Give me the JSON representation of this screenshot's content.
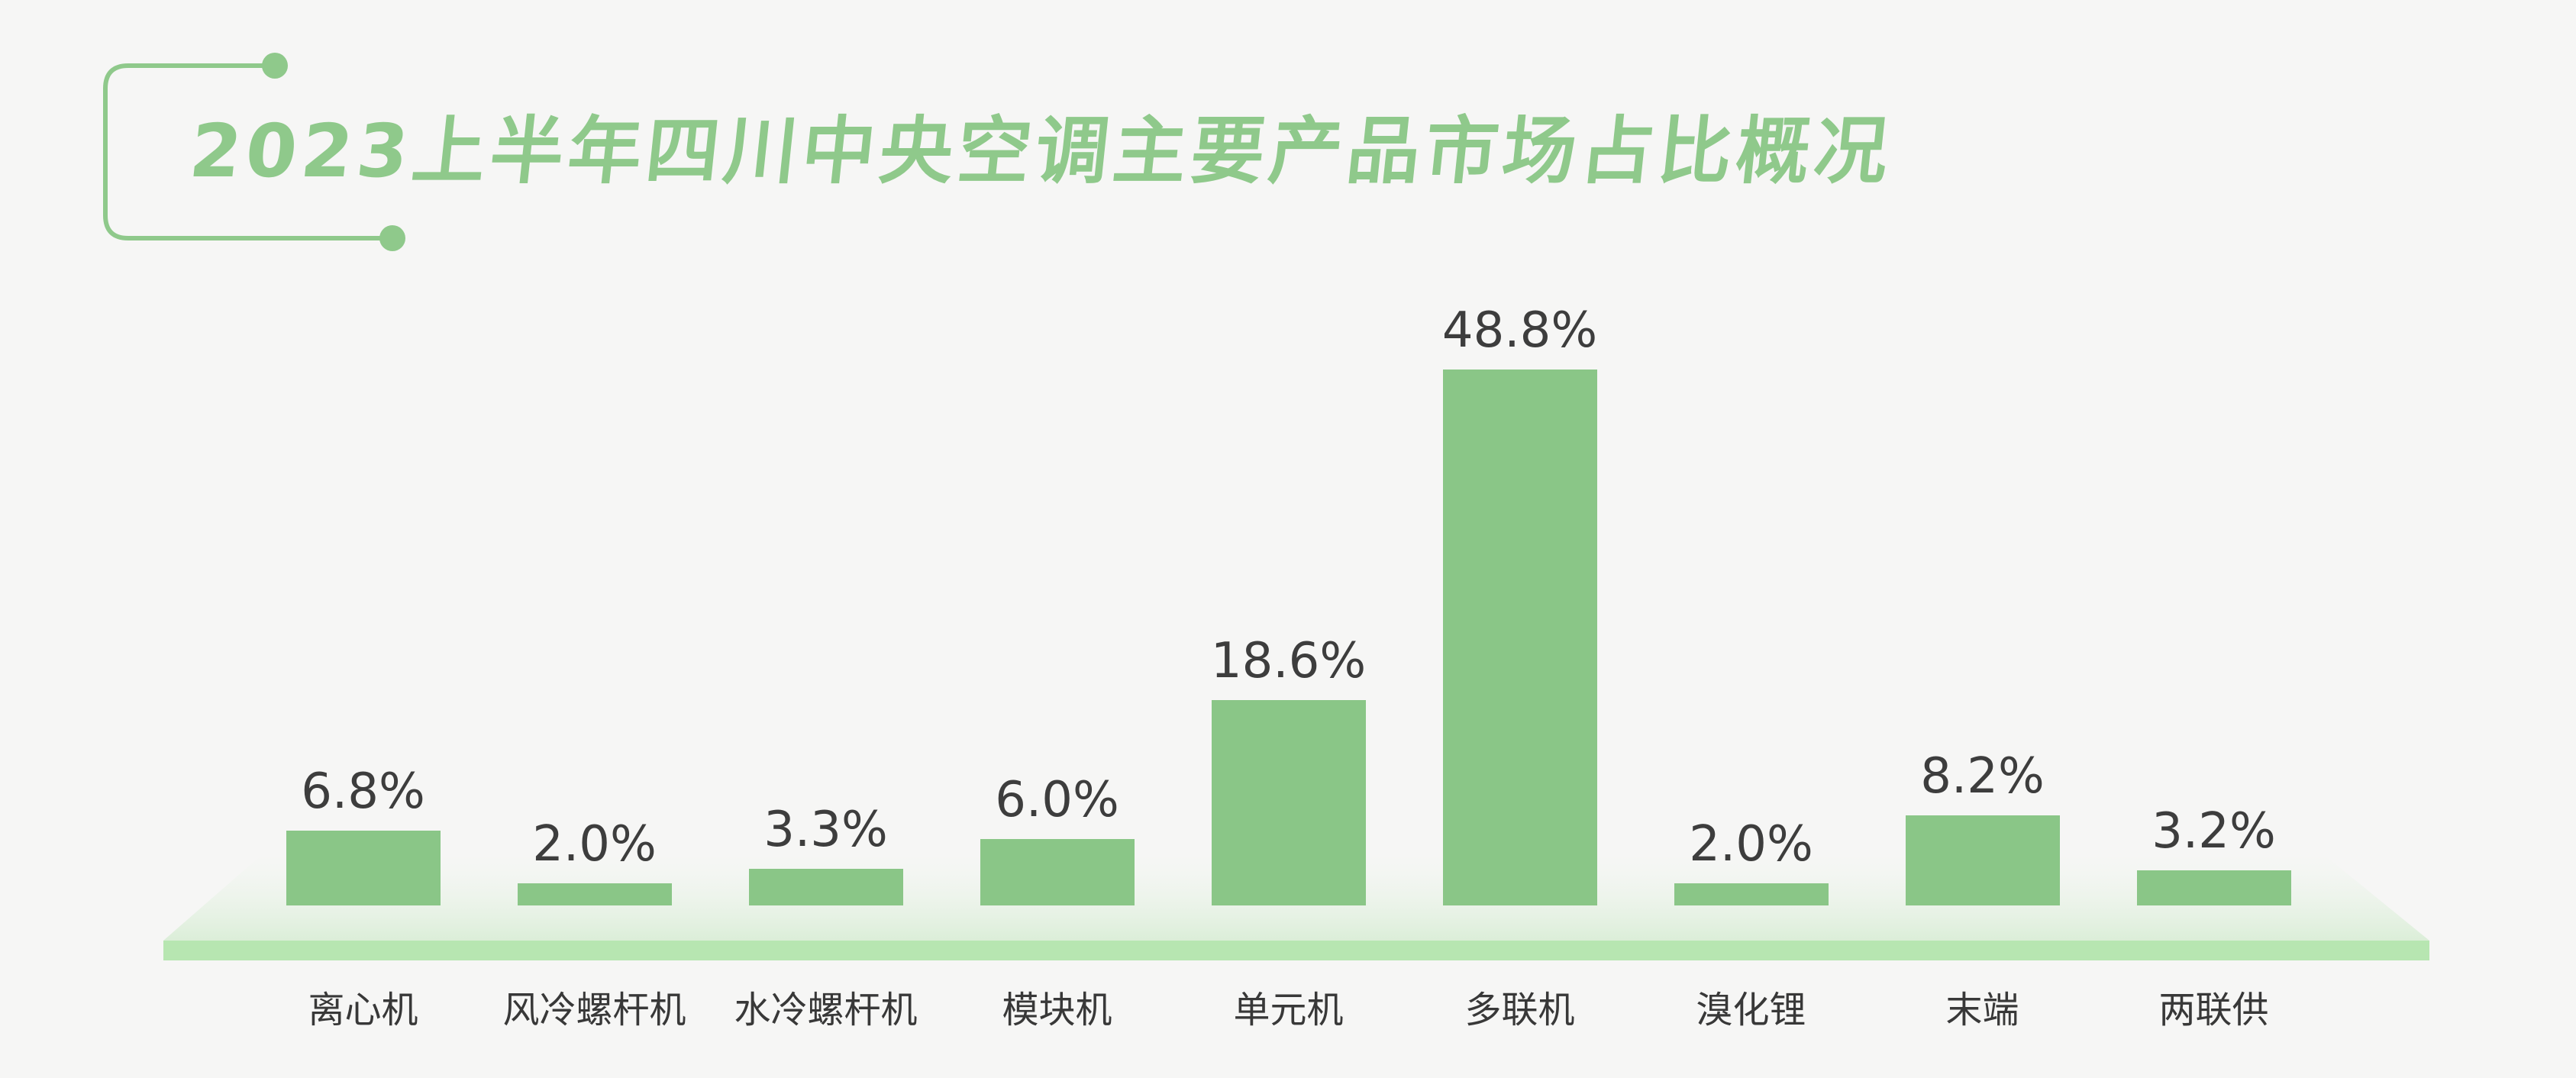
{
  "title": "2023上半年四川中央空调主要产品市场占比概况",
  "chart_data": {
    "type": "bar",
    "title": "2023上半年四川中央空调主要产品市场占比概况",
    "categories": [
      "离心机",
      "风冷螺杆机",
      "水冷螺杆机",
      "模块机",
      "单元机",
      "多联机",
      "溴化锂",
      "末端",
      "两联供"
    ],
    "values": [
      6.8,
      2.0,
      3.3,
      6.0,
      18.6,
      48.8,
      2.0,
      8.2,
      3.2
    ],
    "value_labels": [
      "6.8%",
      "2.0%",
      "3.3%",
      "6.0%",
      "18.6%",
      "48.8%",
      "2.0%",
      "8.2%",
      "3.2%"
    ],
    "unit": "%",
    "ylim": [
      0,
      50
    ],
    "grid": false,
    "legend": "none",
    "bar_color": "#8AC687",
    "label_position": "above-bar",
    "baseline": "3d-platform"
  },
  "colors": {
    "background": "#F6F6F5",
    "title_green": "#8FC98B",
    "bar_green": "#8AC687",
    "platform_front": "#B7E6B1",
    "platform_top_start": "#F5F7F4",
    "platform_top_end": "#DBEED8",
    "value_label_text": "#3D3D3D",
    "category_label_text": "#383838"
  }
}
